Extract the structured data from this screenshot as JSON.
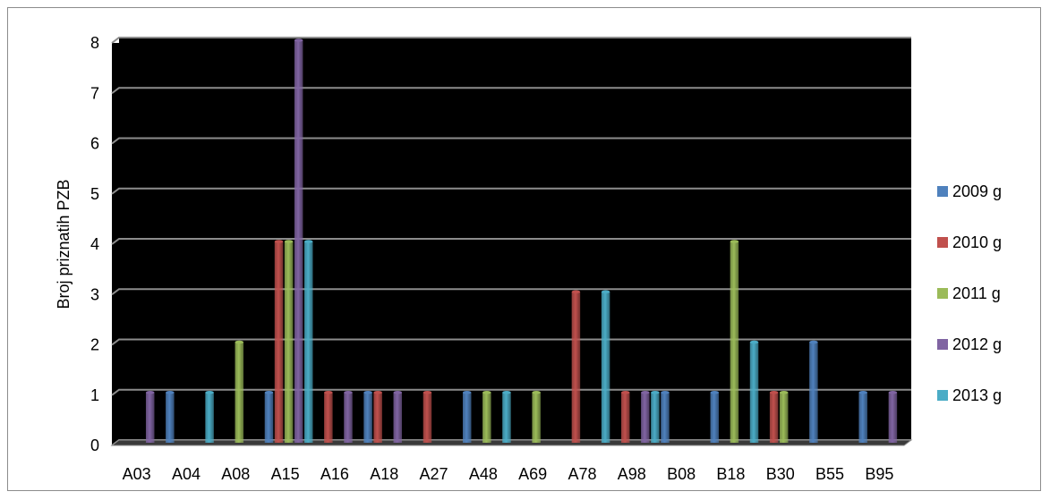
{
  "chart_data": {
    "type": "bar",
    "title": "",
    "xlabel": "",
    "ylabel": "Broj priznatih PZB",
    "ylim": [
      0,
      8
    ],
    "yticks": [
      "0",
      "1",
      "2",
      "3",
      "4",
      "5",
      "6",
      "7",
      "8"
    ],
    "grid": true,
    "legend_position": "right",
    "categories": [
      "A03",
      "A04",
      "A08",
      "A15",
      "A16",
      "A18",
      "A27",
      "A48",
      "A69",
      "A78",
      "A98",
      "B08",
      "B18",
      "B30",
      "B55",
      "B95"
    ],
    "series": [
      {
        "name": "2009 g",
        "color": "#4f81bd",
        "values": [
          0,
          1,
          0,
          1,
          0,
          1,
          0,
          1,
          0,
          0,
          0,
          1,
          1,
          0,
          2,
          1
        ]
      },
      {
        "name": "2010 g",
        "color": "#c0504d",
        "values": [
          0,
          0,
          0,
          4,
          1,
          1,
          1,
          0,
          0,
          3,
          1,
          0,
          0,
          1,
          0,
          0
        ]
      },
      {
        "name": "2011 g",
        "color": "#9bbb59",
        "values": [
          0,
          0,
          2,
          4,
          0,
          0,
          0,
          1,
          1,
          0,
          0,
          0,
          4,
          1,
          0,
          0
        ]
      },
      {
        "name": "2012 g",
        "color": "#8064a2",
        "values": [
          1,
          0,
          0,
          8,
          1,
          1,
          0,
          0,
          0,
          0,
          1,
          0,
          0,
          0,
          0,
          1
        ]
      },
      {
        "name": "2013 g",
        "color": "#4bacc6",
        "values": [
          0,
          1,
          0,
          4,
          0,
          0,
          0,
          1,
          0,
          3,
          1,
          0,
          2,
          0,
          0,
          0
        ]
      }
    ],
    "plot_background": "#000000",
    "gridline_color": "#8c8c8c"
  }
}
